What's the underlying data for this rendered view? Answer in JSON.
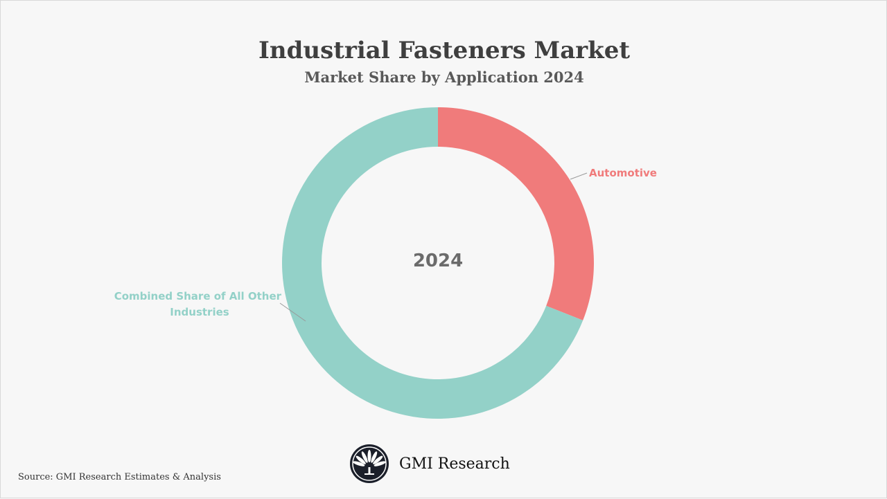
{
  "chart_data": {
    "type": "pie",
    "variant": "donut",
    "title": "Industrial Fasteners Market",
    "subtitle": "Market Share by Application 2024",
    "center_label": "2024",
    "categories": [
      "Automotive",
      "Combined Share of All Other Industries"
    ],
    "values": [
      31,
      69
    ],
    "unit": "%",
    "colors": [
      "#f07b7b",
      "#93d1c8"
    ]
  },
  "footer": {
    "source": "Source: GMI Research Estimates & Analysis",
    "logo_text": "GMI Research"
  }
}
